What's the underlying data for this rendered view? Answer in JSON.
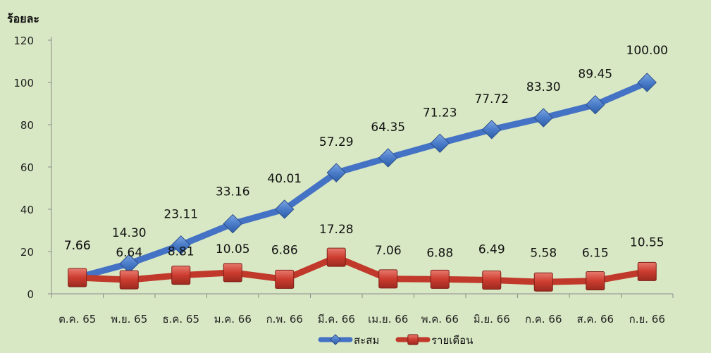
{
  "chart_data": {
    "type": "line",
    "ylabel": "ร้อยละ",
    "ylim": [
      0,
      120
    ],
    "yticks": [
      0,
      20,
      40,
      60,
      80,
      100,
      120
    ],
    "grid": false,
    "legend_position": "bottom",
    "background": "#d9e8c4",
    "categories": [
      "ต.ค. 65",
      "พ.ย. 65",
      "ธ.ค. 65",
      "ม.ค. 66",
      "ก.พ. 66",
      "มี.ค. 66",
      "เม.ย. 66",
      "พ.ค. 66",
      "มิ.ย. 66",
      "ก.ค. 66",
      "ส.ค. 66",
      "ก.ย. 66"
    ],
    "series": [
      {
        "name": "สะสม",
        "marker": "diamond",
        "color": "#4472c4",
        "values": [
          7.66,
          14.3,
          23.11,
          33.16,
          40.01,
          57.29,
          64.35,
          71.23,
          77.72,
          83.3,
          89.45,
          100.0
        ],
        "labels": [
          "7.66",
          "14.30",
          "23.11",
          "33.16",
          "40.01",
          "57.29",
          "64.35",
          "71.23",
          "77.72",
          "83.30",
          "89.45",
          "100.00"
        ]
      },
      {
        "name": "รายเดือน",
        "marker": "square",
        "color": "#c0392b",
        "values": [
          7.66,
          6.64,
          8.81,
          10.05,
          6.86,
          17.28,
          7.06,
          6.88,
          6.49,
          5.58,
          6.15,
          10.55
        ],
        "labels": [
          "7.66",
          "6.64",
          "8.81",
          "10.05",
          "6.86",
          "17.28",
          "7.06",
          "6.88",
          "6.49",
          "5.58",
          "6.15",
          "10.55"
        ]
      }
    ]
  }
}
